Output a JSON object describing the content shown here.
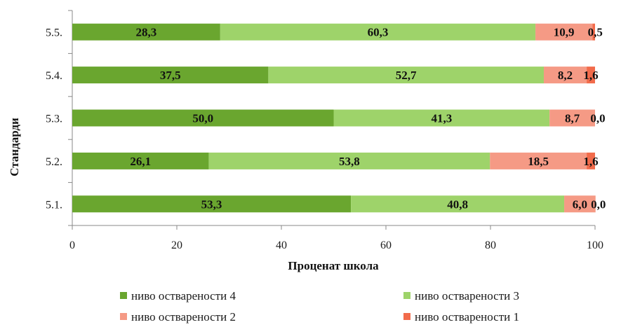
{
  "chart_data": {
    "type": "bar",
    "orientation": "horizontal",
    "stacked": true,
    "xlabel": "Проценат школа",
    "ylabel": "Стандарди",
    "xlim": [
      0,
      100
    ],
    "xticks": [
      "0",
      "20",
      "40",
      "60",
      "80",
      "100"
    ],
    "categories": [
      "5.1.",
      "5.2.",
      "5.3.",
      "5.4.",
      "5.5."
    ],
    "series": [
      {
        "name": "ниво остварености 4",
        "color": "#6aa62f",
        "values": [
          53.3,
          26.1,
          50.0,
          37.5,
          28.3
        ],
        "labels": [
          "53,3",
          "26,1",
          "50,0",
          "37,5",
          "28,3"
        ]
      },
      {
        "name": "ниво остварености 3",
        "color": "#9ed36a",
        "values": [
          40.8,
          53.8,
          41.3,
          52.7,
          60.3
        ],
        "labels": [
          "40,8",
          "53,8",
          "41,3",
          "52,7",
          "60,3"
        ]
      },
      {
        "name": "ниво остварености 2",
        "color": "#f59a85",
        "values": [
          6.0,
          18.5,
          8.7,
          8.2,
          10.9
        ],
        "labels": [
          "6,0",
          "18,5",
          "8,7",
          "8,2",
          "10,9"
        ]
      },
      {
        "name": "ниво остварености 1",
        "color": "#f26b4b",
        "values": [
          0.0,
          1.6,
          0.0,
          1.6,
          0.5
        ],
        "labels": [
          "0,0",
          "1,6",
          "0,0",
          "1,6",
          "0,5"
        ]
      }
    ],
    "grid": false,
    "legend": "bottom"
  }
}
